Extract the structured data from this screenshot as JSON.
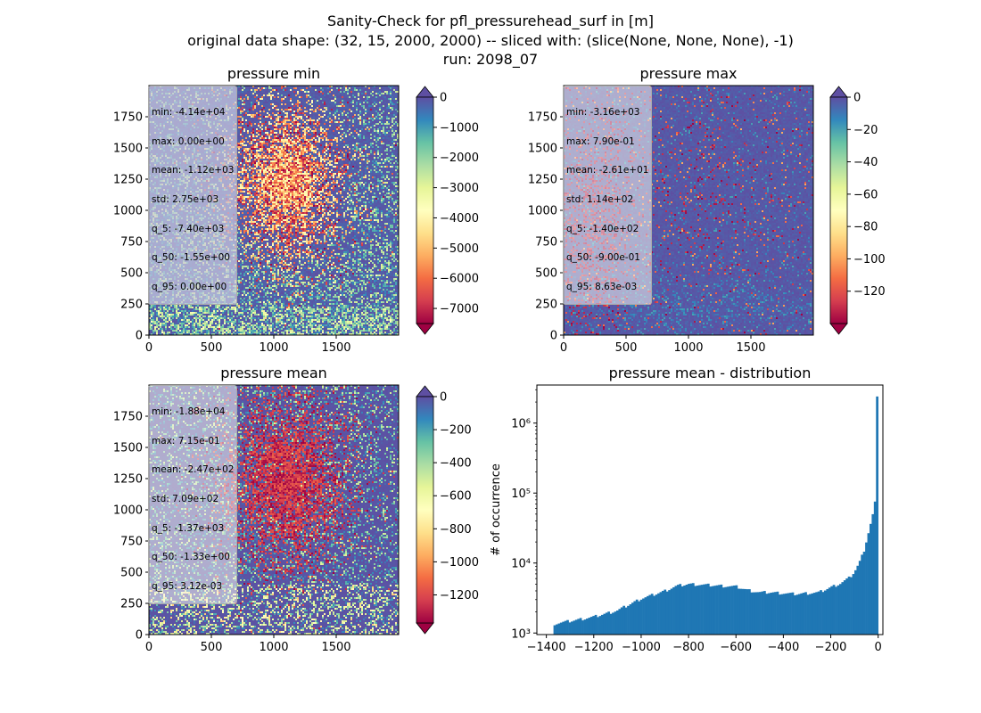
{
  "figure": {
    "title_lines": [
      "Sanity-Check for pfl_pressurehead_surf in [m]",
      "original data shape: (32, 15, 2000, 2000) -- sliced with: (slice(None, None, None), -1)",
      "run: 2098_07"
    ]
  },
  "colors": {
    "spectral": [
      "#9e0142",
      "#d53e4f",
      "#f46d43",
      "#fdae61",
      "#fee08b",
      "#ffffbf",
      "#e6f598",
      "#abdda4",
      "#66c2a5",
      "#3288bd",
      "#5e4fa2"
    ],
    "hist_bar": "#1f77b4"
  },
  "chart_data": [
    {
      "type": "heatmap",
      "title": "pressure min",
      "x_ticks": [
        0,
        500,
        1000,
        1500
      ],
      "y_ticks": [
        0,
        250,
        500,
        750,
        1000,
        1250,
        1500,
        1750
      ],
      "xlim": [
        0,
        2000
      ],
      "ylim": [
        0,
        2000
      ],
      "colorbar": {
        "vmin": -7500,
        "vmax": 0,
        "ticks": [
          0,
          -1000,
          -2000,
          -3000,
          -4000,
          -5000,
          -6000,
          -7000
        ],
        "colormap": "Spectral",
        "extend": "both"
      },
      "stats": [
        "min: -4.14e+04",
        "max: 0.00e+00",
        "mean: -1.12e+03",
        "std: 2.75e+03",
        "q_5: -7.40e+03",
        "q_50: -1.55e+00",
        "q_95: 0.00e+00"
      ]
    },
    {
      "type": "heatmap",
      "title": "pressure max",
      "x_ticks": [
        0,
        500,
        1000,
        1500
      ],
      "y_ticks": [
        0,
        250,
        500,
        750,
        1000,
        1250,
        1500,
        1750
      ],
      "xlim": [
        0,
        2000
      ],
      "ylim": [
        0,
        2000
      ],
      "colorbar": {
        "vmin": -140,
        "vmax": 0,
        "ticks": [
          0,
          -20,
          -40,
          -60,
          -80,
          -100,
          -120
        ],
        "colormap": "Spectral",
        "extend": "both"
      },
      "stats": [
        "min: -3.16e+03",
        "max: 7.90e-01",
        "mean: -2.61e+01",
        "std: 1.14e+02",
        "q_5: -1.40e+02",
        "q_50: -9.00e-01",
        "q_95: 8.63e-03"
      ]
    },
    {
      "type": "heatmap",
      "title": "pressure mean",
      "x_ticks": [
        0,
        500,
        1000,
        1500
      ],
      "y_ticks": [
        0,
        250,
        500,
        750,
        1000,
        1250,
        1500,
        1750
      ],
      "xlim": [
        0,
        2000
      ],
      "ylim": [
        0,
        2000
      ],
      "colorbar": {
        "vmin": -1370,
        "vmax": 0,
        "ticks": [
          0,
          -200,
          -400,
          -600,
          -800,
          -1000,
          -1200
        ],
        "colormap": "Spectral",
        "extend": "both"
      },
      "stats": [
        "min: -1.88e+04",
        "max: 7.15e-01",
        "mean: -2.47e+02",
        "std: 7.09e+02",
        "q_5: -1.37e+03",
        "q_50: -1.33e+00",
        "q_95: 3.12e-03"
      ]
    },
    {
      "type": "bar",
      "title": "pressure mean - distribution",
      "ylabel": "# of occurrence",
      "xlabel": "",
      "y_scale": "log",
      "xlim": [
        -1440,
        20
      ],
      "ylim": [
        950,
        3500000
      ],
      "x_ticks": [
        -1400,
        -1200,
        -1000,
        -800,
        -600,
        -400,
        -200,
        0
      ],
      "y_ticks": [
        1000,
        10000,
        100000,
        1000000
      ],
      "y_tick_labels": [
        "10³",
        "10⁴",
        "10⁵",
        "10⁶"
      ],
      "bin_range": [
        -1370,
        0
      ],
      "bin_count": 150,
      "profile_x": [
        -1370,
        -1300,
        -1200,
        -1100,
        -1000,
        -950,
        -900,
        -850,
        -800,
        -750,
        -700,
        -650,
        -600,
        -550,
        -500,
        -450,
        -400,
        -350,
        -300,
        -250,
        -200,
        -160,
        -120,
        -100,
        -80,
        -60,
        -45,
        -35,
        -25,
        -20,
        -15,
        -10,
        -7,
        -5,
        -3,
        0
      ],
      "profile_y": [
        1350,
        1480,
        1700,
        2100,
        3100,
        3500,
        4000,
        4700,
        5000,
        4900,
        4800,
        4700,
        4600,
        4100,
        3800,
        3800,
        3700,
        3600,
        3700,
        3800,
        4500,
        5100,
        6200,
        7500,
        10000,
        15000,
        24000,
        33000,
        45000,
        55000,
        68000,
        90000,
        70000,
        55000,
        2400000,
        2400000
      ]
    }
  ]
}
